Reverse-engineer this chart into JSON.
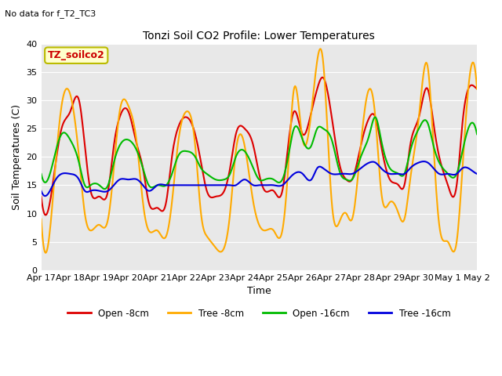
{
  "title": "Tonzi Soil CO2 Profile: Lower Temperatures",
  "subtitle": "No data for f_T2_TC3",
  "xlabel": "Time",
  "ylabel": "Soil Temperatures (C)",
  "box_label": "TZ_soilco2",
  "ylim": [
    0,
    40
  ],
  "yticks": [
    0,
    5,
    10,
    15,
    20,
    25,
    30,
    35,
    40
  ],
  "xtick_labels": [
    "Apr 17",
    "Apr 18",
    "Apr 19",
    "Apr 20",
    "Apr 21",
    "Apr 22",
    "Apr 23",
    "Apr 24",
    "Apr 25",
    "Apr 26",
    "Apr 27",
    "Apr 28",
    "Apr 29",
    "Apr 30",
    "May 1",
    "May 2"
  ],
  "colors": {
    "open8": "#dd0000",
    "tree8": "#ffaa00",
    "open16": "#00bb00",
    "tree16": "#0000dd"
  },
  "legend_labels": [
    "Open -8cm",
    "Tree -8cm",
    "Open -16cm",
    "Tree -16cm"
  ],
  "background_color": "#e8e8e8",
  "figsize": [
    6.4,
    4.8
  ],
  "dpi": 100,
  "open8_knots_x": [
    0,
    0.3,
    0.5,
    0.7,
    1.0,
    1.3,
    1.5,
    1.7,
    2.0,
    2.3,
    2.5,
    2.7,
    3.0,
    3.3,
    3.5,
    3.7,
    4.0,
    4.3,
    4.5,
    4.7,
    5.0,
    5.3,
    5.5,
    5.7,
    6.0,
    6.3,
    6.5,
    6.7,
    7.0,
    7.3,
    7.5,
    7.7,
    8.0,
    8.3,
    8.5,
    8.7,
    9.0,
    9.3,
    9.5,
    9.7,
    10.0,
    10.3,
    10.5,
    10.7,
    11.0,
    11.3,
    11.5,
    11.7,
    12.0,
    12.3,
    12.5,
    12.7,
    13.0,
    13.3,
    13.5,
    13.7,
    14.0,
    14.3,
    14.5,
    14.7,
    15.0
  ],
  "open8_knots_y": [
    13,
    12,
    19,
    25,
    28,
    30,
    22,
    14,
    13,
    14,
    22,
    27,
    28,
    22,
    18,
    12,
    11,
    12,
    20,
    25,
    27,
    24,
    19,
    14,
    13,
    14,
    18,
    24,
    25,
    22,
    17,
    14,
    14,
    14,
    22,
    28,
    24,
    28,
    32,
    34,
    27,
    18,
    16,
    16,
    22,
    27,
    27,
    22,
    16,
    15,
    15,
    22,
    27,
    32,
    26,
    20,
    15,
    15,
    26,
    32,
    32
  ],
  "tree8_knots_y": [
    9,
    7,
    19,
    29,
    31,
    20,
    10,
    7,
    8,
    9,
    18,
    28,
    29,
    22,
    12,
    7,
    7,
    6,
    12,
    22,
    28,
    22,
    10,
    6,
    4,
    4,
    10,
    21,
    22,
    12,
    8,
    7,
    7,
    7,
    18,
    32,
    23,
    28,
    37,
    37,
    12,
    9,
    10,
    9,
    22,
    32,
    27,
    14,
    12,
    10,
    9,
    16,
    27,
    36,
    22,
    8,
    5,
    5,
    18,
    32,
    32
  ],
  "open16_knots_y": [
    17,
    17,
    21,
    24,
    23,
    19,
    15,
    15,
    15,
    15,
    19,
    22,
    23,
    21,
    18,
    15,
    15,
    15,
    17,
    20,
    21,
    20,
    18,
    17,
    16,
    16,
    17,
    20,
    21,
    18,
    16,
    16,
    16,
    16,
    20,
    25,
    23,
    22,
    25,
    25,
    23,
    17,
    16,
    16,
    20,
    24,
    27,
    23,
    18,
    17,
    17,
    21,
    25,
    26,
    22,
    19,
    17,
    17,
    21,
    25,
    24
  ],
  "tree16_knots_y": [
    14,
    14,
    16,
    17,
    17,
    16,
    14,
    14,
    14,
    14,
    15,
    16,
    16,
    16,
    15,
    14,
    15,
    15,
    15,
    15,
    15,
    15,
    15,
    15,
    15,
    15,
    15,
    15,
    16,
    15,
    15,
    15,
    15,
    15,
    16,
    17,
    17,
    16,
    18,
    18,
    17,
    17,
    17,
    17,
    18,
    19,
    19,
    18,
    17,
    17,
    17,
    18,
    19,
    19,
    18,
    17,
    17,
    17,
    18,
    18,
    17
  ]
}
